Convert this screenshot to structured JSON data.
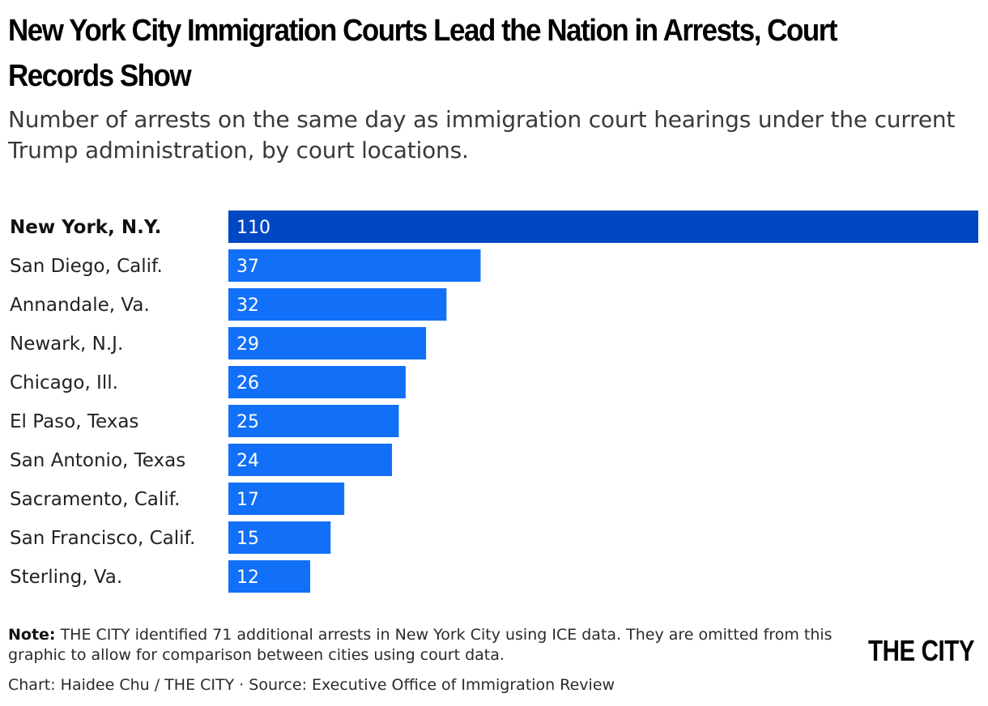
{
  "header": {
    "title": "New York City Immigration Courts Lead the Nation in Arrests, Court Records Show",
    "subtitle": "Number of arrests on the same day as immigration court hearings under the current Trump administration, by court locations."
  },
  "footer": {
    "note_label": "Note:",
    "note_text": " THE CITY identified 71 additional arrests in New York City using ICE data. They are omitted from this graphic to allow for comparison between cities using court data.",
    "credit": "Chart: Haidee Chu / THE CITY · Source: Executive Office of Immigration Review",
    "logo_text": "THE CITY"
  },
  "colors": {
    "highlight_bar": "#0047c2",
    "bar": "#1170f7",
    "value_text": "#ffffff"
  },
  "chart_data": {
    "type": "bar",
    "orientation": "horizontal",
    "categories": [
      "New York, N.Y.",
      "San Diego, Calif.",
      "Annandale, Va.",
      "Newark, N.J.",
      "Chicago, Ill.",
      "El Paso, Texas",
      "San Antonio, Texas",
      "Sacramento, Calif.",
      "San Francisco, Calif.",
      "Sterling, Va."
    ],
    "values": [
      110,
      37,
      32,
      29,
      26,
      25,
      24,
      17,
      15,
      12
    ],
    "highlight_category": "New York, N.Y.",
    "xlim": [
      0,
      110
    ],
    "grid": false,
    "axes_visible": false,
    "legend": "none"
  }
}
